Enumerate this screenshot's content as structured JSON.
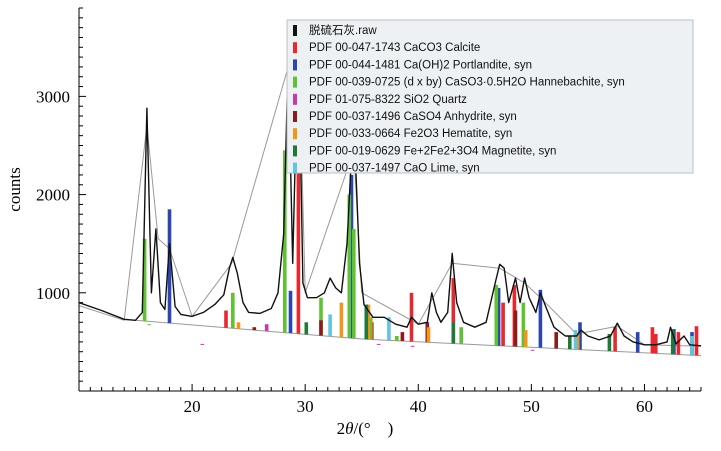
{
  "chart_data": {
    "type": "line",
    "xlabel": "2θ/(° )",
    "ylabel": "counts",
    "xlim": [
      10,
      65
    ],
    "ylim": [
      0,
      3900
    ],
    "x_ticks": [
      20,
      30,
      40,
      50,
      60
    ],
    "y_ticks": [
      1000,
      2000,
      3000
    ],
    "grid": false,
    "legend_position": "top-right",
    "observed": {
      "name": "脱硫石灰.raw",
      "color": "#111111",
      "points": [
        [
          10,
          900
        ],
        [
          12,
          820
        ],
        [
          14,
          730
        ],
        [
          15,
          720
        ],
        [
          15.6,
          800
        ],
        [
          16.0,
          2880
        ],
        [
          16.4,
          1000
        ],
        [
          16.8,
          1650
        ],
        [
          17.2,
          900
        ],
        [
          17.6,
          830
        ],
        [
          18.0,
          1500
        ],
        [
          18.5,
          860
        ],
        [
          19,
          780
        ],
        [
          20,
          760
        ],
        [
          21,
          800
        ],
        [
          22,
          880
        ],
        [
          22.8,
          980
        ],
        [
          23.3,
          1250
        ],
        [
          23.6,
          1360
        ],
        [
          24.0,
          1200
        ],
        [
          24.5,
          900
        ],
        [
          25,
          800
        ],
        [
          26,
          790
        ],
        [
          27,
          840
        ],
        [
          27.6,
          1000
        ],
        [
          28.1,
          1600
        ],
        [
          28.5,
          3400
        ],
        [
          28.9,
          1300
        ],
        [
          29.4,
          3700
        ],
        [
          29.8,
          1100
        ],
        [
          30.2,
          950
        ],
        [
          31,
          950
        ],
        [
          31.7,
          1000
        ],
        [
          32.2,
          1150
        ],
        [
          32.7,
          1050
        ],
        [
          33.2,
          1000
        ],
        [
          33.7,
          1500
        ],
        [
          34.1,
          2400
        ],
        [
          34.4,
          2500
        ],
        [
          34.8,
          1300
        ],
        [
          35.2,
          880
        ],
        [
          36,
          750
        ],
        [
          37,
          750
        ],
        [
          38,
          680
        ],
        [
          39,
          650
        ],
        [
          39.4,
          750
        ],
        [
          40,
          680
        ],
        [
          40.8,
          700
        ],
        [
          41.2,
          1000
        ],
        [
          41.6,
          800
        ],
        [
          42,
          700
        ],
        [
          42.6,
          800
        ],
        [
          43.0,
          1400
        ],
        [
          43.4,
          900
        ],
        [
          44,
          700
        ],
        [
          45,
          650
        ],
        [
          46,
          700
        ],
        [
          46.8,
          1100
        ],
        [
          47.2,
          1290
        ],
        [
          47.6,
          1250
        ],
        [
          48,
          900
        ],
        [
          48.6,
          1150
        ],
        [
          49,
          900
        ],
        [
          49.4,
          1150
        ],
        [
          49.8,
          950
        ],
        [
          50.4,
          800
        ],
        [
          50.8,
          1000
        ],
        [
          51.3,
          850
        ],
        [
          52,
          650
        ],
        [
          53,
          560
        ],
        [
          54,
          560
        ],
        [
          54.4,
          620
        ],
        [
          55,
          560
        ],
        [
          56,
          520
        ],
        [
          57,
          560
        ],
        [
          57.6,
          690
        ],
        [
          58.2,
          560
        ],
        [
          59,
          500
        ],
        [
          60,
          470
        ],
        [
          61,
          470
        ],
        [
          62,
          500
        ],
        [
          62.3,
          650
        ],
        [
          62.8,
          480
        ],
        [
          63.5,
          560
        ],
        [
          64,
          470
        ],
        [
          65,
          460
        ]
      ]
    },
    "fit": {
      "color": "#999999",
      "points": [
        [
          10,
          870
        ],
        [
          14,
          720
        ],
        [
          16,
          2700
        ],
        [
          17,
          1550
        ],
        [
          18,
          1450
        ],
        [
          20,
          760
        ],
        [
          23.5,
          1300
        ],
        [
          28.5,
          3300
        ],
        [
          29.4,
          3700
        ],
        [
          30,
          1000
        ],
        [
          34.3,
          2450
        ],
        [
          35,
          1000
        ],
        [
          40,
          680
        ],
        [
          43,
          1300
        ],
        [
          47.2,
          1250
        ],
        [
          49.4,
          1100
        ],
        [
          50.8,
          950
        ],
        [
          54,
          580
        ],
        [
          57.6,
          660
        ],
        [
          60,
          470
        ],
        [
          65,
          455
        ]
      ]
    },
    "background": {
      "color": "#999999",
      "points": [
        [
          15,
          720
        ],
        [
          35,
          530
        ],
        [
          65,
          360
        ]
      ]
    },
    "series": [
      {
        "name": "PDF 00-047-1743 CaCO3 Calcite",
        "color": "#e8282f",
        "x": [
          23.0,
          29.4,
          35.9,
          39.4,
          43.1,
          47.5,
          48.5,
          57.4,
          60.7,
          61.0,
          63.0,
          64.6
        ],
        "y": [
          820,
          3000,
          700,
          1000,
          1150,
          900,
          1080,
          650,
          650,
          580,
          600,
          660
        ]
      },
      {
        "name": "PDF 00-044-1481 Ca(OH)2 Portlandite, syn",
        "color": "#2b46b2",
        "x": [
          18.0,
          28.7,
          34.1,
          47.1,
          50.8,
          54.3,
          59.4,
          62.6,
          64.2
        ],
        "y": [
          1850,
          1020,
          2200,
          1050,
          1030,
          700,
          600,
          630,
          600
        ]
      },
      {
        "name": "PDF 00-039-0725 (d x by) CaSO3·0.5H2O Hannebachite, syn",
        "color": "#5ec232",
        "x": [
          15.8,
          16.2,
          23.6,
          28.2,
          31.4,
          33.9,
          34.3,
          35.8,
          38.1,
          43.8,
          46.9,
          49.3
        ],
        "y": [
          1550,
          680,
          1000,
          2450,
          950,
          2000,
          1650,
          750,
          560,
          650,
          1080,
          900
        ]
      },
      {
        "name": "PDF 01-075-8322 SiO2 Quartz",
        "color": "#c23ba8",
        "x": [
          20.9,
          26.6,
          36.5,
          39.5,
          50.1
        ],
        "y": [
          480,
          680,
          480,
          460,
          420
        ]
      },
      {
        "name": "PDF 00-037-1496 CaSO4 Anhydrite, syn",
        "color": "#8c1c1c",
        "x": [
          25.5,
          31.4,
          38.6,
          40.8,
          48.6,
          52.2
        ],
        "y": [
          650,
          720,
          600,
          700,
          820,
          600
        ]
      },
      {
        "name": "PDF 00-033-0664 Fe2O3 Hematite, syn",
        "color": "#f0961e",
        "x": [
          24.1,
          33.2,
          35.6,
          40.9,
          49.5,
          54.1
        ],
        "y": [
          700,
          900,
          880,
          650,
          620,
          600
        ]
      },
      {
        "name": "PDF 00-019-0629 Fe+2Fe2+3O4 Magnetite, syn",
        "color": "#1f7a3a",
        "x": [
          30.1,
          35.4,
          43.1,
          53.4,
          56.9,
          62.5
        ],
        "y": [
          700,
          880,
          700,
          560,
          580,
          620
        ]
      },
      {
        "name": "PDF 00-037-1497 CaO Lime, syn",
        "color": "#5fc6e2",
        "x": [
          32.2,
          37.4,
          53.9,
          64.2
        ],
        "y": [
          780,
          750,
          620,
          560
        ]
      }
    ]
  }
}
